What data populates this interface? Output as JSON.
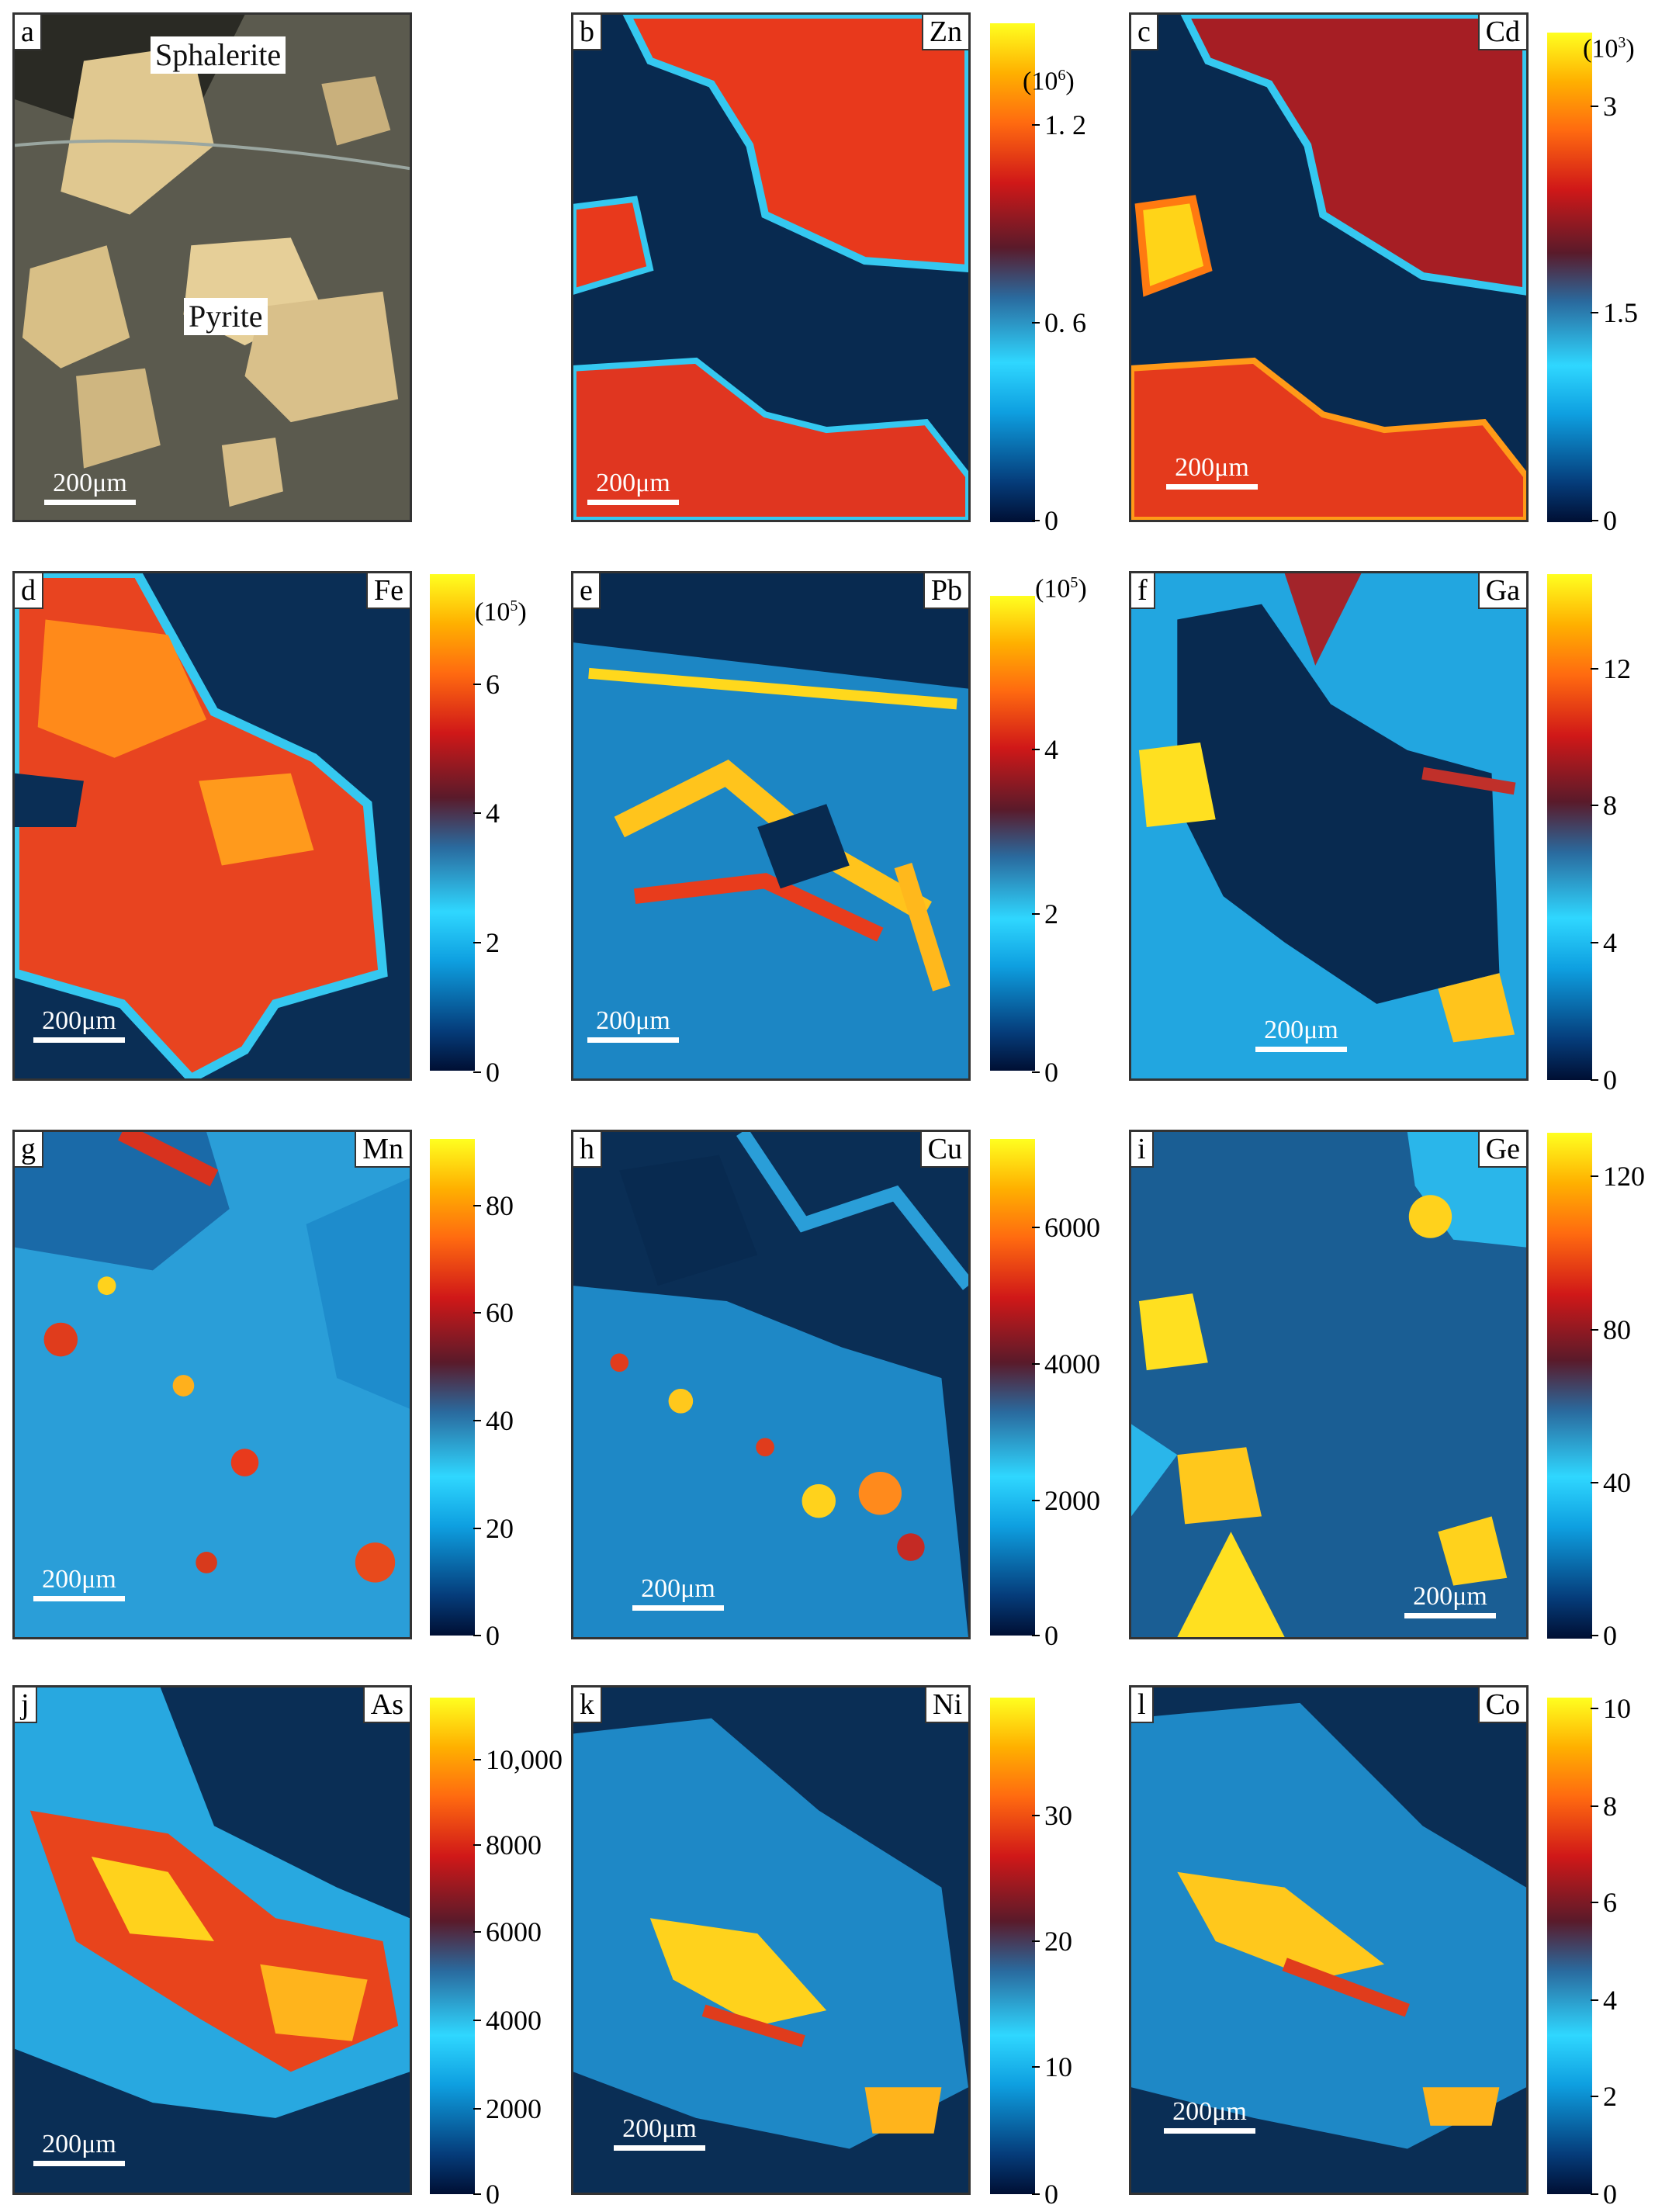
{
  "scale_label": "200μm",
  "panels": [
    {
      "letter": "a",
      "element": "",
      "mineral_labels": [
        "Sphalerite",
        "Pyrite"
      ],
      "ticks": [],
      "multiplier": ""
    },
    {
      "letter": "b",
      "element": "Zn",
      "ticks": [
        "1. 2",
        "0. 6",
        "0"
      ],
      "multiplier": "(10",
      "mult_exp": "6",
      "mult_close": ")"
    },
    {
      "letter": "c",
      "element": "Cd",
      "ticks": [
        "3",
        "1.5",
        "0"
      ],
      "multiplier": "(10",
      "mult_exp": "3",
      "mult_close": ")"
    },
    {
      "letter": "d",
      "element": "Fe",
      "ticks": [
        "6",
        "4",
        "2",
        "0"
      ],
      "multiplier": "(10",
      "mult_exp": "5",
      "mult_close": ")"
    },
    {
      "letter": "e",
      "element": "Pb",
      "ticks": [
        "4",
        "2",
        "0"
      ],
      "multiplier": "(10",
      "mult_exp": "5",
      "mult_close": ")"
    },
    {
      "letter": "f",
      "element": "Ga",
      "ticks": [
        "12",
        "8",
        "4",
        "0"
      ],
      "multiplier": ""
    },
    {
      "letter": "g",
      "element": "Mn",
      "ticks": [
        "80",
        "60",
        "40",
        "20",
        "0"
      ],
      "multiplier": ""
    },
    {
      "letter": "h",
      "element": "Cu",
      "ticks": [
        "6000",
        "4000",
        "2000",
        "0"
      ],
      "multiplier": ""
    },
    {
      "letter": "i",
      "element": "Ge",
      "ticks": [
        "120",
        "80",
        "40",
        "0"
      ],
      "multiplier": ""
    },
    {
      "letter": "j",
      "element": "As",
      "ticks": [
        "10,000",
        "8000",
        "6000",
        "4000",
        "2000",
        "0"
      ],
      "multiplier": ""
    },
    {
      "letter": "k",
      "element": "Ni",
      "ticks": [
        "30",
        "20",
        "10",
        "0"
      ],
      "multiplier": ""
    },
    {
      "letter": "l",
      "element": "Co",
      "ticks": [
        "10",
        "8",
        "6",
        "4",
        "2",
        "0"
      ],
      "multiplier": ""
    }
  ]
}
